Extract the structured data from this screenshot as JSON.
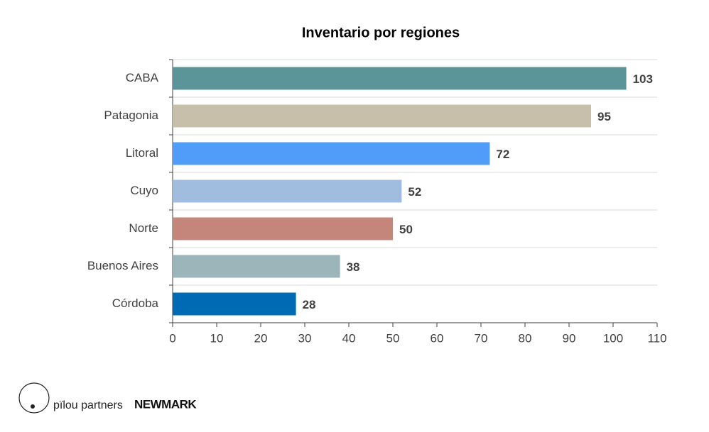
{
  "chart_data": {
    "type": "hbar",
    "title": "Inventario por regiones",
    "categories": [
      "CABA",
      "Patagonia",
      "Litoral",
      "Cuyo",
      "Norte",
      "Buenos Aires",
      "Córdoba"
    ],
    "values": [
      103,
      95,
      72,
      52,
      50,
      38,
      28
    ],
    "colors": [
      "#5b9499",
      "#c8bfab",
      "#4f9cf9",
      "#a0bde0",
      "#c4857a",
      "#9bb5ba",
      "#006bb5"
    ],
    "xlim": [
      0,
      110
    ],
    "xticks": [
      0,
      10,
      20,
      30,
      40,
      50,
      60,
      70,
      80,
      90,
      100,
      110
    ],
    "grid": true
  },
  "footer": {
    "brand_1": "pïlou partners",
    "brand_2": "NEWMARK"
  }
}
